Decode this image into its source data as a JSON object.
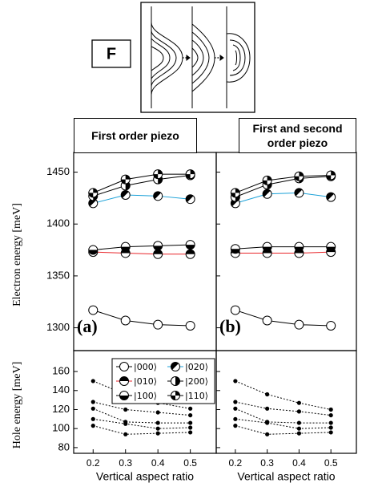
{
  "figure": {
    "label": "F"
  },
  "chart_data": [
    {
      "type": "line",
      "title": "First order piezo",
      "panel": "(a)",
      "ylabel": "Electron energy [meV]",
      "x": [
        0.2,
        0.3,
        0.4,
        0.5
      ],
      "xlim": [
        0.14,
        0.58
      ],
      "ylim": [
        1278,
        1469
      ],
      "yticks": [
        1300,
        1350,
        1400,
        1450
      ],
      "series": [
        {
          "name": "|000⟩",
          "color": "#000000",
          "marker": "open",
          "values": [
            1317,
            1307,
            1303,
            1302
          ]
        },
        {
          "name": "|010⟩",
          "color": "#e8262b",
          "marker": "half-top",
          "values": [
            1373,
            1372,
            1371,
            1371
          ]
        },
        {
          "name": "|100⟩",
          "color": "#000000",
          "marker": "half-bottom",
          "values": [
            1375,
            1378,
            1379,
            1380
          ]
        },
        {
          "name": "|020⟩",
          "color": "#1ba1d8",
          "marker": "half-diagonal",
          "values": [
            1420,
            1428,
            1427,
            1424
          ]
        },
        {
          "name": "|200⟩",
          "color": "#000000",
          "marker": "half-right",
          "values": [
            1427,
            1437,
            1443,
            1447
          ]
        },
        {
          "name": "|110⟩",
          "color": "#000000",
          "marker": "quarters",
          "values": [
            1430,
            1443,
            1448,
            1448
          ]
        }
      ]
    },
    {
      "type": "line",
      "title": "First and second order piezo",
      "panel": "(b)",
      "x": [
        0.2,
        0.3,
        0.4,
        0.5
      ],
      "xlim": [
        0.14,
        0.58
      ],
      "ylim": [
        1278,
        1469
      ],
      "yticks": [
        1300,
        1350,
        1400,
        1450
      ],
      "series": [
        {
          "color": "#000000",
          "marker": "open",
          "values": [
            1317,
            1307,
            1303,
            1302
          ]
        },
        {
          "color": "#e8262b",
          "marker": "half-top",
          "values": [
            1372,
            1372,
            1372,
            1373
          ]
        },
        {
          "color": "#000000",
          "marker": "half-bottom",
          "values": [
            1376,
            1378,
            1378,
            1378
          ]
        },
        {
          "color": "#1ba1d8",
          "marker": "half-diagonal",
          "values": [
            1420,
            1429,
            1430,
            1426
          ]
        },
        {
          "color": "#000000",
          "marker": "half-right",
          "values": [
            1426,
            1438,
            1444,
            1446
          ]
        },
        {
          "color": "#000000",
          "marker": "quarters",
          "values": [
            1430,
            1442,
            1446,
            1447
          ]
        }
      ]
    },
    {
      "type": "line",
      "ylabel": "Hole energy [meV]",
      "xlabel": "Vertical aspect ratio",
      "x": [
        0.2,
        0.3,
        0.4,
        0.5
      ],
      "xlim": [
        0.14,
        0.58
      ],
      "xticks": [
        0.2,
        0.3,
        0.4,
        0.5
      ],
      "ylim": [
        74,
        182
      ],
      "yticks": [
        80,
        100,
        120,
        140,
        160
      ],
      "series": [
        {
          "color": "#000000",
          "marker": "dot",
          "linestyle": "dotted",
          "values": [
            150,
            136,
            127,
            121
          ]
        },
        {
          "color": "#000000",
          "marker": "dot",
          "linestyle": "dotted",
          "values": [
            128,
            120,
            117,
            114
          ]
        },
        {
          "color": "#000000",
          "marker": "dot",
          "linestyle": "dotted",
          "values": [
            121,
            107,
            106,
            106
          ]
        },
        {
          "color": "#000000",
          "marker": "dot",
          "linestyle": "dotted",
          "values": [
            110,
            105,
            100,
            101
          ]
        },
        {
          "color": "#000000",
          "marker": "dot",
          "linestyle": "dotted",
          "values": [
            103,
            94,
            95,
            96
          ]
        }
      ]
    },
    {
      "type": "line",
      "xlabel": "Vertical aspect ratio",
      "x": [
        0.2,
        0.3,
        0.4,
        0.5
      ],
      "xlim": [
        0.14,
        0.58
      ],
      "xticks": [
        0.2,
        0.3,
        0.4,
        0.5
      ],
      "ylim": [
        74,
        182
      ],
      "yticks": [
        80,
        100,
        120,
        140,
        160
      ],
      "series": [
        {
          "color": "#000000",
          "marker": "dot",
          "linestyle": "dotted",
          "values": [
            150,
            136,
            127,
            120
          ]
        },
        {
          "color": "#000000",
          "marker": "dot",
          "linestyle": "dotted",
          "values": [
            128,
            121,
            118,
            114
          ]
        },
        {
          "color": "#000000",
          "marker": "dot",
          "linestyle": "dotted",
          "values": [
            121,
            107,
            106,
            106
          ]
        },
        {
          "color": "#000000",
          "marker": "dot",
          "linestyle": "dotted",
          "values": [
            110,
            106,
            100,
            101
          ]
        },
        {
          "color": "#000000",
          "marker": "dot",
          "linestyle": "dotted",
          "values": [
            103,
            94,
            95,
            96
          ]
        }
      ]
    }
  ]
}
